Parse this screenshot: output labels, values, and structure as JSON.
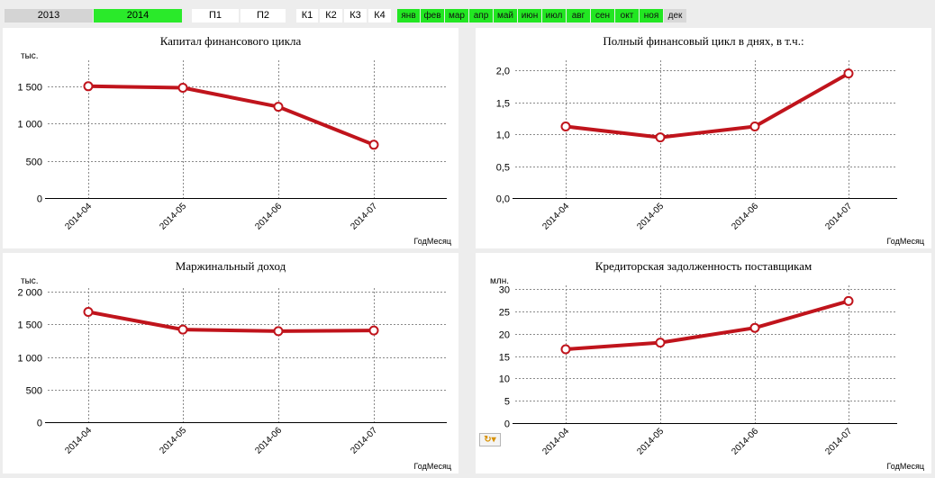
{
  "filters": {
    "years": [
      {
        "label": "2013",
        "active": false
      },
      {
        "label": "2014",
        "active": true
      }
    ],
    "halves": [
      "П1",
      "П2"
    ],
    "quarters": [
      "К1",
      "К2",
      "К3",
      "К4"
    ],
    "months": [
      {
        "label": "янв",
        "active": true
      },
      {
        "label": "фев",
        "active": true
      },
      {
        "label": "мар",
        "active": true
      },
      {
        "label": "апр",
        "active": true
      },
      {
        "label": "май",
        "active": true
      },
      {
        "label": "июн",
        "active": true
      },
      {
        "label": "июл",
        "active": true
      },
      {
        "label": "авг",
        "active": true
      },
      {
        "label": "сен",
        "active": true
      },
      {
        "label": "окт",
        "active": true
      },
      {
        "label": "ноя",
        "active": true
      },
      {
        "label": "дек",
        "active": false
      }
    ]
  },
  "colors": {
    "line": "#c0141c",
    "active_filter": "#22e622",
    "inactive_filter": "#d4d4d4"
  },
  "toolbar_icon": "refresh-dropdown-icon",
  "chart_data": [
    {
      "type": "line",
      "title": "Капитал финансового цикла",
      "unit_label": "тыс.",
      "xlabel": "ГодМесяц",
      "categories": [
        "2014-04",
        "2014-05",
        "2014-06",
        "2014-07"
      ],
      "values": [
        1500,
        1480,
        1225,
        715
      ],
      "yticks": [
        "0",
        "500",
        "1 000",
        "1 500"
      ],
      "ytick_values": [
        0,
        500,
        1000,
        1500
      ],
      "ylim": [
        0,
        1800
      ],
      "grid": true
    },
    {
      "type": "line",
      "title": "Полный финансовый цикл в днях, в т.ч.:",
      "unit_label": "",
      "xlabel": "ГодМесяц",
      "categories": [
        "2014-04",
        "2014-05",
        "2014-06",
        "2014-07"
      ],
      "values": [
        1.12,
        0.95,
        1.12,
        1.95
      ],
      "yticks": [
        "0,0",
        "0,5",
        "1,0",
        "1,5",
        "2,0"
      ],
      "ytick_values": [
        0,
        0.5,
        1.0,
        1.5,
        2.0
      ],
      "ylim": [
        0,
        2.1
      ],
      "grid": true
    },
    {
      "type": "line",
      "title": "Маржинальный доход",
      "unit_label": "тыс.",
      "xlabel": "ГодМесяц",
      "categories": [
        "2014-04",
        "2014-05",
        "2014-06",
        "2014-07"
      ],
      "values": [
        1690,
        1420,
        1395,
        1405
      ],
      "yticks": [
        "0",
        "500",
        "1 000",
        "1 500",
        "2 000"
      ],
      "ytick_values": [
        0,
        500,
        1000,
        1500,
        2000
      ],
      "ylim": [
        0,
        2000
      ],
      "grid": true
    },
    {
      "type": "line",
      "title": "Кредиторская задолженность поставщикам",
      "unit_label": "млн.",
      "xlabel": "ГодМесяц",
      "categories": [
        "2014-04",
        "2014-05",
        "2014-06",
        "2014-07"
      ],
      "values": [
        16.5,
        18.0,
        21.3,
        27.3
      ],
      "yticks": [
        "0",
        "5",
        "10",
        "15",
        "20",
        "25",
        "30"
      ],
      "ytick_values": [
        0,
        5,
        10,
        15,
        20,
        25,
        30
      ],
      "ylim": [
        0,
        30
      ],
      "grid": true
    }
  ]
}
